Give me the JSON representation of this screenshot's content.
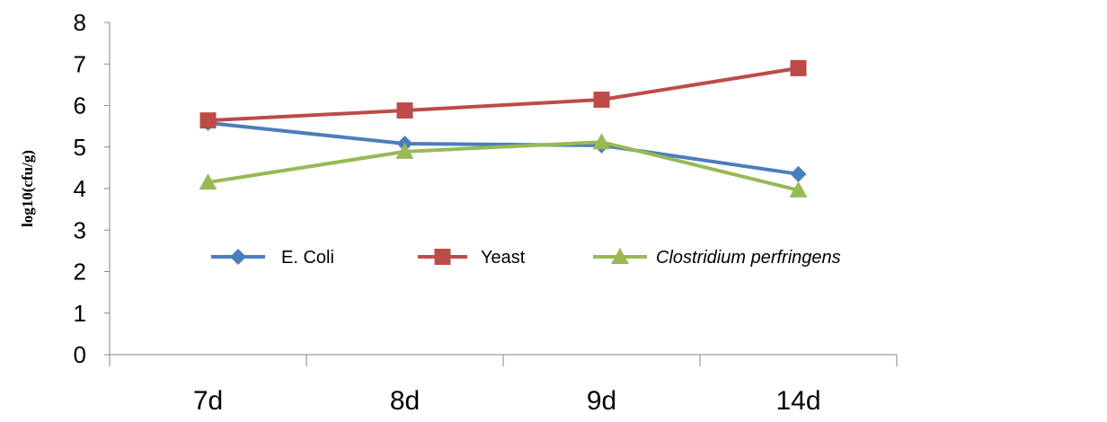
{
  "chart_data": {
    "type": "line",
    "title": "",
    "xlabel": "",
    "ylabel": "log10(cfu/g)",
    "categories": [
      "7d",
      "8d",
      "9d",
      "14d"
    ],
    "ylim": [
      0,
      8
    ],
    "yticks": [
      "0",
      "1",
      "2",
      "3",
      "4",
      "5",
      "6",
      "7",
      "8"
    ],
    "grid": false,
    "legend_position": "center",
    "series": [
      {
        "name": "E. Coli",
        "color": "#4A7EBB",
        "marker": "diamond",
        "italic": false,
        "values": [
          5.58,
          5.08,
          5.04,
          4.35
        ]
      },
      {
        "name": "Yeast",
        "color": "#BE4B48",
        "marker": "square",
        "italic": false,
        "values": [
          5.64,
          5.88,
          6.14,
          6.9
        ]
      },
      {
        "name": "Clostridium perfringens",
        "color": "#98B954",
        "marker": "triangle",
        "italic": true,
        "values": [
          4.15,
          4.89,
          5.12,
          3.96
        ]
      }
    ]
  }
}
